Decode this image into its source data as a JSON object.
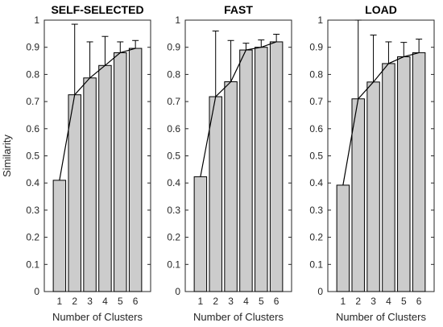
{
  "chart_data": {
    "type": "bar",
    "ylabel": "Similarity",
    "xlabel": "Number of Clusters",
    "ylim": [
      0,
      1
    ],
    "yticks": [
      "0",
      "0.1",
      "0.2",
      "0.3",
      "0.4",
      "0.5",
      "0.6",
      "0.7",
      "0.8",
      "0.9",
      "1"
    ],
    "categories": [
      "1",
      "2",
      "3",
      "4",
      "5",
      "6"
    ],
    "bar_color": "#cccccc",
    "edge_color": "#000000",
    "panels": [
      {
        "title": "SELF-SELECTED",
        "values": [
          0.41,
          0.725,
          0.787,
          0.833,
          0.88,
          0.896
        ],
        "error_upper": [
          0.41,
          0.985,
          0.92,
          0.94,
          0.92,
          0.925
        ]
      },
      {
        "title": "FAST",
        "values": [
          0.423,
          0.718,
          0.773,
          0.89,
          0.9,
          0.92
        ],
        "error_upper": [
          0.423,
          0.96,
          0.925,
          0.915,
          0.927,
          0.948
        ]
      },
      {
        "title": "LOAD",
        "values": [
          0.392,
          0.71,
          0.772,
          0.84,
          0.865,
          0.88
        ],
        "error_upper": [
          0.392,
          1.0,
          0.945,
          0.92,
          0.918,
          0.93
        ]
      }
    ]
  }
}
